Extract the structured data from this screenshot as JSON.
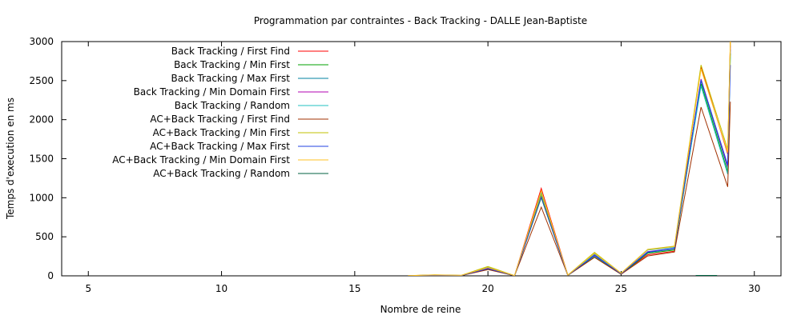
{
  "chart_data": {
    "type": "line",
    "title": "Programmation par contraintes - Back Tracking - DALLE Jean-Baptiste",
    "xlabel": "Nombre de reine",
    "ylabel": "Temps d'execution en ms",
    "xlim": [
      4,
      31
    ],
    "ylim": [
      0,
      3000
    ],
    "xticks": [
      5,
      10,
      15,
      20,
      25,
      30
    ],
    "yticks": [
      0,
      500,
      1000,
      1500,
      2000,
      2500,
      3000
    ],
    "grid": false,
    "legend_position": "top-left",
    "x": [
      17,
      18,
      19,
      20,
      21,
      22,
      23,
      24,
      25,
      26,
      27,
      28,
      29,
      29.1
    ],
    "series": [
      {
        "name": "Back Tracking / First Find",
        "color": "#ff0000",
        "values": [
          2,
          10,
          5,
          100,
          2,
          1120,
          10,
          265,
          30,
          270,
          315,
          2680,
          1560,
          3000
        ]
      },
      {
        "name": "Back Tracking / Min First",
        "color": "#00a000",
        "values": [
          2,
          6,
          3,
          85,
          1,
          1000,
          6,
          240,
          20,
          290,
          330,
          2460,
          1330,
          2850
        ]
      },
      {
        "name": "Back Tracking / Max First",
        "color": "#0080a0",
        "values": [
          2,
          7,
          4,
          90,
          2,
          1030,
          7,
          255,
          25,
          300,
          345,
          2500,
          1380,
          2900
        ]
      },
      {
        "name": "Back Tracking / Min Domain First",
        "color": "#b000b0",
        "values": [
          2,
          8,
          4,
          95,
          2,
          1080,
          8,
          270,
          27,
          310,
          350,
          2520,
          1400,
          2950
        ]
      },
      {
        "name": "Back Tracking / Random",
        "color": "#20c0c0",
        "values": [
          2,
          9,
          5,
          110,
          2,
          1060,
          9,
          280,
          32,
          330,
          365,
          2430,
          1300,
          2800
        ]
      },
      {
        "name": "AC+Back Tracking / First Find",
        "color": "#a03000",
        "values": [
          2,
          6,
          3,
          80,
          1,
          880,
          6,
          235,
          20,
          255,
          305,
          2160,
          1140,
          2230
        ]
      },
      {
        "name": "AC+Back Tracking / Min First",
        "color": "#c0c000",
        "values": [
          2,
          12,
          6,
          120,
          3,
          1040,
          10,
          300,
          35,
          340,
          380,
          2700,
          1620,
          3000
        ]
      },
      {
        "name": "AC+Back Tracking / Max First",
        "color": "#2040e0",
        "values": [
          2,
          8,
          4,
          92,
          2,
          1010,
          7,
          260,
          26,
          305,
          350,
          2510,
          1420,
          2700
        ]
      },
      {
        "name": "AC+Back Tracking / Min Domain First",
        "color": "#ffc020",
        "values": [
          2,
          11,
          6,
          105,
          3,
          1090,
          9,
          290,
          33,
          335,
          375,
          2650,
          1580,
          3000
        ]
      },
      {
        "name": "AC+Back Tracking / Random",
        "color": "#006040",
        "x": [
          27.8,
          28.6
        ],
        "values": [
          5,
          5
        ]
      }
    ]
  }
}
